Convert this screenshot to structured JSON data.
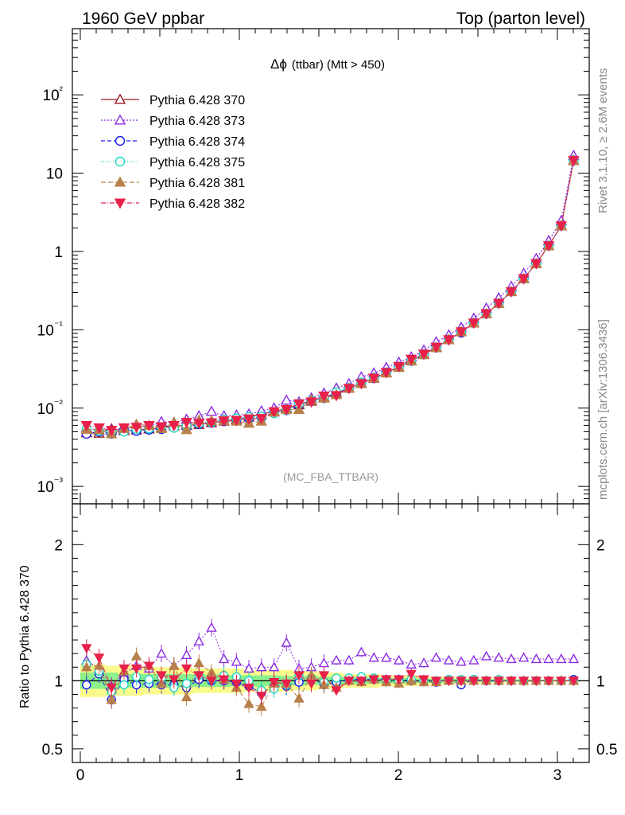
{
  "header": {
    "left": "1960 GeV ppbar",
    "right": "Top (parton level)"
  },
  "side_labels": {
    "rivet": "Rivet 3.1.10, ≥ 2.6M events",
    "mcplots": "mcplots.cern.ch [arXiv:1306.3436]"
  },
  "analysis_tag": "(MC_FBA_TTBAR)",
  "colors": {
    "band_yellow": "#fafa8c",
    "band_green": "#8cf08c"
  },
  "chart_data": [
    {
      "type": "line",
      "title": "Δϕ (ttbar) (Mtt > 450)",
      "title_symbol": "Δϕ",
      "title_rest": "(ttbar) (Mtt > 450)",
      "xlabel": "",
      "ylabel": "",
      "xlim": [
        -0.05,
        3.2
      ],
      "ylim": [
        0.0006,
        700
      ],
      "yscale": "log",
      "y_tick_labels": [
        "10⁻³",
        "10⁻²",
        "10⁻¹",
        "1",
        "10",
        "10²"
      ],
      "legend_position": "top-left",
      "x": [
        0.039,
        0.118,
        0.196,
        0.275,
        0.353,
        0.432,
        0.51,
        0.589,
        0.668,
        0.746,
        0.825,
        0.903,
        0.982,
        1.06,
        1.139,
        1.218,
        1.296,
        1.375,
        1.453,
        1.532,
        1.61,
        1.689,
        1.767,
        1.846,
        1.924,
        2.003,
        2.081,
        2.16,
        2.238,
        2.317,
        2.395,
        2.474,
        2.553,
        2.631,
        2.71,
        2.788,
        2.867,
        2.945,
        3.024,
        3.102
      ],
      "series": [
        {
          "name": "Pythia 6.428 370",
          "color": "#9a1a22",
          "marker": "triangle-open",
          "dash": "",
          "values": [
            0.00485,
            0.00478,
            0.00545,
            0.00514,
            0.00525,
            0.00542,
            0.00558,
            0.00592,
            0.00603,
            0.00618,
            0.00652,
            0.00683,
            0.00715,
            0.0077,
            0.00836,
            0.00912,
            0.00984,
            0.011,
            0.01224,
            0.01375,
            0.01563,
            0.01788,
            0.02064,
            0.02401,
            0.02825,
            0.03352,
            0.04017,
            0.0487,
            0.05988,
            0.07455,
            0.09438,
            0.1217,
            0.1606,
            0.2178,
            0.3067,
            0.4493,
            0.7016,
            1.184,
            2.129,
            14.5
          ]
        },
        {
          "name": "Pythia 6.428 373",
          "color": "#8a2be2",
          "marker": "triangle-open",
          "dash": "2,2",
          "values": [
            0.00558,
            0.00521,
            0.00523,
            0.00539,
            0.00583,
            0.00592,
            0.0067,
            0.00656,
            0.00718,
            0.00795,
            0.00906,
            0.00795,
            0.00815,
            0.0084,
            0.0092,
            0.01,
            0.0126,
            0.012,
            0.0135,
            0.0155,
            0.018,
            0.0205,
            0.025,
            0.028,
            0.033,
            0.0385,
            0.045,
            0.055,
            0.07,
            0.086,
            0.1075,
            0.14,
            0.189,
            0.255,
            0.357,
            0.524,
            0.813,
            1.37,
            2.47,
            16.8
          ]
        },
        {
          "name": "Pythia 6.428 374",
          "color": "#1a1ae6",
          "marker": "circle-open",
          "dash": "5,3",
          "values": [
            0.0047,
            0.005,
            0.0047,
            0.0052,
            0.0051,
            0.0053,
            0.0054,
            0.00575,
            0.0057,
            0.00625,
            0.0065,
            0.0068,
            0.0071,
            0.0074,
            0.0076,
            0.0088,
            0.0094,
            0.0109,
            0.0125,
            0.0134,
            0.0154,
            0.018,
            0.0208,
            0.0242,
            0.0285,
            0.0338,
            0.04,
            0.0486,
            0.0593,
            0.075,
            0.092,
            0.123,
            0.16,
            0.218,
            0.308,
            0.45,
            0.702,
            1.186,
            2.13,
            14.6
          ]
        },
        {
          "name": "Pythia 6.428 375",
          "color": "#20d8c0",
          "marker": "circle-open",
          "dash": "1,2",
          "values": [
            0.00545,
            0.0051,
            0.005,
            0.005,
            0.0054,
            0.0055,
            0.0057,
            0.0056,
            0.0059,
            0.0064,
            0.0066,
            0.0071,
            0.0074,
            0.0077,
            0.0078,
            0.0086,
            0.0095,
            0.0114,
            0.0125,
            0.0136,
            0.0159,
            0.0182,
            0.0212,
            0.0244,
            0.0283,
            0.0335,
            0.0405,
            0.0488,
            0.0599,
            0.075,
            0.0945,
            0.1225,
            0.161,
            0.219,
            0.308,
            0.451,
            0.703,
            1.185,
            2.131,
            14.5
          ]
        },
        {
          "name": "Pythia 6.428 381",
          "color": "#b8804a",
          "marker": "triangle-filled",
          "dash": "6,3",
          "values": [
            0.00535,
            0.0053,
            0.0047,
            0.0055,
            0.0062,
            0.006,
            0.0055,
            0.0066,
            0.0053,
            0.007,
            0.0069,
            0.0069,
            0.0068,
            0.0064,
            0.0068,
            0.0089,
            0.0096,
            0.0096,
            0.0127,
            0.0134,
            0.0148,
            0.0179,
            0.0205,
            0.0242,
            0.028,
            0.033,
            0.04,
            0.048,
            0.059,
            0.0745,
            0.0942,
            0.1217,
            0.16,
            0.217,
            0.306,
            0.449,
            0.7,
            1.18,
            2.125,
            14.5
          ]
        },
        {
          "name": "Pythia 6.428 382",
          "color": "#e8204a",
          "marker": "triangle-down-filled",
          "dash": "6,2,1,2",
          "values": [
            0.006,
            0.0056,
            0.0052,
            0.0056,
            0.0057,
            0.006,
            0.0058,
            0.006,
            0.0066,
            0.0064,
            0.0065,
            0.0069,
            0.007,
            0.0073,
            0.0074,
            0.009,
            0.0096,
            0.0114,
            0.012,
            0.0143,
            0.0145,
            0.0179,
            0.0206,
            0.0242,
            0.0285,
            0.034,
            0.0422,
            0.049,
            0.06,
            0.0747,
            0.0946,
            0.122,
            0.161,
            0.218,
            0.307,
            0.45,
            0.702,
            1.185,
            2.13,
            14.5
          ]
        }
      ]
    },
    {
      "type": "line",
      "title": "",
      "xlabel": "",
      "ylabel": "Ratio to Pythia 6.428 370",
      "xlim": [
        -0.05,
        3.2
      ],
      "ylim": [
        0.4,
        2.3
      ],
      "x_tick_labels": [
        "0",
        "1",
        "2",
        "3"
      ],
      "y_tick_labels": [
        "0.5",
        "1",
        "2"
      ],
      "yellow_band_halfwidth": [
        0.12,
        0.12,
        0.11,
        0.11,
        0.11,
        0.1,
        0.1,
        0.1,
        0.1,
        0.09,
        0.09,
        0.09,
        0.09,
        0.08,
        0.08,
        0.08,
        0.08,
        0.07,
        0.07,
        0.06,
        0.06,
        0.05,
        0.05,
        0.05,
        0.04,
        0.04,
        0.04,
        0.03,
        0.03,
        0.03,
        0.02,
        0.02,
        0.02,
        0.02,
        0.015,
        0.015,
        0.01,
        0.01,
        0.01,
        0.005
      ],
      "green_band_halfwidth": [
        0.06,
        0.06,
        0.06,
        0.05,
        0.05,
        0.05,
        0.05,
        0.05,
        0.05,
        0.045,
        0.045,
        0.045,
        0.04,
        0.04,
        0.04,
        0.04,
        0.035,
        0.035,
        0.03,
        0.03,
        0.03,
        0.025,
        0.025,
        0.02,
        0.02,
        0.02,
        0.02,
        0.015,
        0.015,
        0.015,
        0.01,
        0.01,
        0.01,
        0.01,
        0.008,
        0.008,
        0.006,
        0.005,
        0.004,
        0.003
      ],
      "series": [
        {
          "name": "Pythia 6.428 373",
          "values": [
            1.15,
            1.09,
            0.96,
            1.05,
            1.11,
            1.09,
            1.2,
            1.11,
            1.19,
            1.29,
            1.39,
            1.16,
            1.14,
            1.09,
            1.1,
            1.1,
            1.28,
            1.09,
            1.1,
            1.13,
            1.15,
            1.15,
            1.21,
            1.17,
            1.17,
            1.15,
            1.12,
            1.13,
            1.17,
            1.15,
            1.14,
            1.15,
            1.18,
            1.17,
            1.16,
            1.17,
            1.16,
            1.16,
            1.16,
            1.16
          ]
        },
        {
          "name": "Pythia 6.428 374",
          "values": [
            0.97,
            1.05,
            0.86,
            1.01,
            0.97,
            0.98,
            0.97,
            0.97,
            0.95,
            1.01,
            1.0,
            1.0,
            0.99,
            0.96,
            0.91,
            0.96,
            0.96,
            0.99,
            1.02,
            0.97,
            0.99,
            1.01,
            1.01,
            1.01,
            1.01,
            1.01,
            1.0,
            1.0,
            0.99,
            1.01,
            0.97,
            1.01,
            1.0,
            1.0,
            1.0,
            1.0,
            1.0,
            1.0,
            1.0,
            1.01
          ]
        },
        {
          "name": "Pythia 6.428 375",
          "values": [
            1.12,
            1.07,
            0.92,
            0.97,
            1.03,
            1.01,
            1.02,
            0.95,
            0.98,
            1.04,
            1.01,
            1.04,
            1.03,
            1.0,
            0.93,
            0.94,
            0.97,
            1.04,
            1.02,
            0.99,
            1.02,
            1.02,
            1.03,
            1.02,
            1.0,
            1.0,
            1.01,
            1.0,
            1.0,
            1.01,
            1.01,
            1.01,
            1.0,
            1.01,
            1.0,
            1.0,
            1.0,
            1.0,
            1.0,
            1.0
          ]
        },
        {
          "name": "Pythia 6.428 381",
          "values": [
            1.1,
            1.11,
            0.86,
            1.07,
            1.18,
            1.11,
            0.98,
            1.11,
            0.88,
            1.13,
            1.06,
            1.01,
            0.95,
            0.83,
            0.81,
            0.98,
            0.98,
            0.87,
            1.04,
            0.97,
            0.95,
            1.0,
            0.99,
            1.01,
            0.99,
            0.98,
            1.0,
            0.99,
            0.99,
            1.0,
            1.0,
            1.0,
            1.0,
            1.0,
            1.0,
            1.0,
            1.0,
            1.0,
            1.0,
            1.0
          ]
        },
        {
          "name": "Pythia 6.428 382",
          "values": [
            1.24,
            1.17,
            0.95,
            1.09,
            1.09,
            1.11,
            1.04,
            1.01,
            1.09,
            1.04,
            1.0,
            1.01,
            0.98,
            0.95,
            0.89,
            0.99,
            0.98,
            1.04,
            0.98,
            1.04,
            0.93,
            1.0,
            1.0,
            1.01,
            1.01,
            1.01,
            1.05,
            1.01,
            1.0,
            1.0,
            1.0,
            1.0,
            1.0,
            1.0,
            1.0,
            1.0,
            1.0,
            1.0,
            1.0,
            1.0
          ]
        }
      ]
    }
  ]
}
